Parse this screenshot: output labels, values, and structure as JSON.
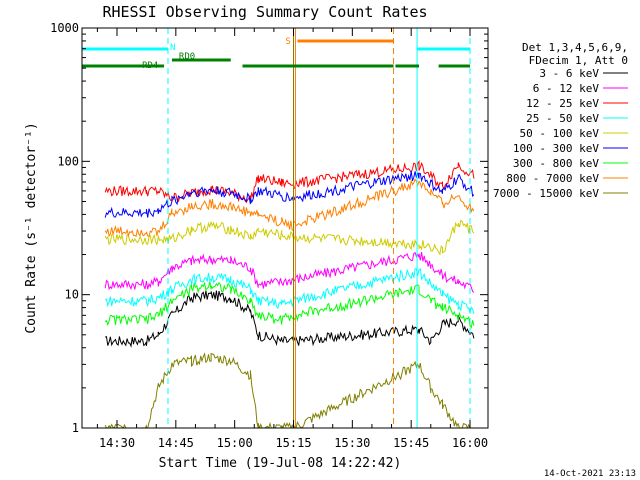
{
  "chart_data": {
    "type": "line",
    "title": "RHESSI Observing Summary Count Rates",
    "xlabel": "Start Time (19-Jul-08 14:22:42)",
    "ylabel": "Count Rate (s⁻¹ detector⁻¹)",
    "yscale": "log",
    "ylim": [
      1,
      1000
    ],
    "xlim_minutes": [
      14.2,
      100.5
    ],
    "x_ticks": [
      {
        "label": "14:30",
        "minute": 30
      },
      {
        "label": "14:45",
        "minute": 45
      },
      {
        "label": "15:00",
        "minute": 60
      },
      {
        "label": "15:15",
        "minute": 75
      },
      {
        "label": "15:30",
        "minute": 90
      },
      {
        "label": "15:45",
        "minute": 105
      },
      {
        "label": "16:00",
        "minute": 120
      }
    ],
    "y_ticks": [
      {
        "label": "1",
        "value": 1
      },
      {
        "label": "10",
        "value": 10
      },
      {
        "label": "100",
        "value": 100
      },
      {
        "label": "1000",
        "value": 1000
      }
    ],
    "legend": {
      "placement": "right",
      "header": [
        "Det 1,3,4,5,6,9,",
        "FDecim 1, Att 0"
      ]
    },
    "series": [
      {
        "name": "3 - 6 keV",
        "color": "#000000",
        "x": [
          27,
          37.5,
          40.5,
          44,
          49,
          54,
          59,
          64,
          66,
          72,
          75,
          107,
          110,
          113,
          117,
          121
        ],
        "y": [
          4.5,
          4.5,
          5,
          7,
          9.5,
          10,
          9.5,
          7.5,
          5,
          4.5,
          4.5,
          5.5,
          4.5,
          6,
          6.5,
          5
        ]
      },
      {
        "name": "6 - 12 keV",
        "color": "#ff00ff",
        "x": [
          27,
          37.5,
          40.5,
          44,
          49,
          54,
          59,
          64,
          66,
          72,
          75,
          107,
          110,
          113,
          117,
          121
        ],
        "y": [
          12,
          12,
          12.5,
          16,
          18,
          18.5,
          18,
          16,
          12,
          12.5,
          13,
          20,
          17,
          14,
          12.5,
          11
        ]
      },
      {
        "name": "12 - 25 keV",
        "color": "#ff0000",
        "x": [
          27,
          37.5,
          40.5,
          44,
          49,
          54,
          59,
          64,
          66,
          72,
          75,
          107,
          110,
          113,
          117,
          121
        ],
        "y": [
          60,
          60,
          60,
          53,
          58,
          62,
          58,
          52,
          75,
          69,
          68,
          92,
          78,
          65,
          95,
          78
        ]
      },
      {
        "name": "25 - 50 keV",
        "color": "#00ffff",
        "x": [
          27,
          37.5,
          40.5,
          44,
          49,
          54,
          59,
          64,
          66,
          72,
          75,
          107,
          110,
          113,
          117,
          121
        ],
        "y": [
          9,
          9,
          9.5,
          11,
          13,
          13.5,
          13,
          11,
          9,
          8.5,
          9,
          15,
          12,
          10,
          8.5,
          7.5
        ]
      },
      {
        "name": "50 - 100 keV",
        "color": "#cccc00",
        "x": [
          27,
          37.5,
          40.5,
          44,
          49,
          54,
          59,
          64,
          66,
          72,
          75,
          107,
          110,
          113,
          117,
          121
        ],
        "y": [
          26,
          26,
          26,
          26,
          31,
          33,
          31,
          27,
          30,
          28,
          27,
          24,
          23,
          21,
          35,
          30
        ]
      },
      {
        "name": "100 - 300 keV",
        "color": "#0000ff",
        "x": [
          27,
          37.5,
          40.5,
          44,
          49,
          54,
          59,
          64,
          66,
          72,
          75,
          107,
          110,
          113,
          117,
          121
        ],
        "y": [
          41,
          41,
          43,
          50,
          59,
          61,
          58,
          52,
          60,
          55,
          53,
          80,
          68,
          58,
          75,
          58
        ]
      },
      {
        "name": "300 - 800 keV",
        "color": "#00ff00",
        "x": [
          27,
          37.5,
          40.5,
          44,
          49,
          54,
          59,
          64,
          66,
          72,
          75,
          107,
          110,
          113,
          117,
          121
        ],
        "y": [
          6.5,
          6.5,
          7,
          9,
          11,
          12,
          11,
          9,
          7,
          6.5,
          7,
          11,
          9,
          8,
          7,
          6
        ]
      },
      {
        "name": "800 - 7000 keV",
        "color": "#ff8000",
        "x": [
          27,
          37.5,
          40.5,
          44,
          49,
          54,
          59,
          64,
          66,
          72,
          75,
          107,
          110,
          113,
          117,
          121
        ],
        "y": [
          30,
          30,
          29,
          41,
          46,
          48,
          46,
          41,
          40,
          35,
          33,
          70,
          58,
          48,
          55,
          43
        ]
      },
      {
        "name": "7000 - 15000 keV",
        "color": "#808000",
        "x": [
          27,
          37.5,
          40.5,
          44,
          49,
          54,
          59,
          64,
          66,
          72,
          75,
          107,
          110,
          113,
          117,
          121
        ],
        "y": [
          1,
          1,
          2,
          3,
          3.2,
          3.4,
          3.2,
          2.5,
          1,
          1,
          1,
          3,
          2,
          1.5,
          1,
          1
        ]
      }
    ],
    "vlines": [
      {
        "minute": 16,
        "style": "solid",
        "color": "#00ffff"
      },
      {
        "minute": 43,
        "style": "dashed",
        "color": "#00ffff"
      },
      {
        "minute": 106.5,
        "style": "solid",
        "color": "#00ffff"
      },
      {
        "minute": 120,
        "style": "dashed",
        "color": "#00ffff"
      },
      {
        "minute": 75.5,
        "style": "solid",
        "color": "#ff8000"
      },
      {
        "minute": 100.5,
        "style": "dashed",
        "color": "#ff8000"
      },
      {
        "minute": 75,
        "style": "solid",
        "color": "#808000"
      }
    ],
    "state_bars": [
      {
        "label": "N",
        "color": "#00ffff",
        "segments": [
          [
            16,
            43
          ],
          [
            106.5,
            120
          ]
        ],
        "level": "upper"
      },
      {
        "label": "S",
        "color": "#ff8000",
        "segments": [
          [
            76,
            100.5
          ]
        ],
        "level": "top"
      },
      {
        "label": "RD0",
        "color": "#008000",
        "segments": [
          [
            44,
            59
          ]
        ],
        "level": "middle"
      },
      {
        "label": "RD4",
        "color": "#008000",
        "segments": [
          [
            16,
            42
          ],
          [
            62,
            100.5
          ],
          [
            101,
            107
          ],
          [
            112,
            120
          ]
        ],
        "level": "middle"
      }
    ],
    "timestamp": "14-Oct-2021 23:13",
    "grid": false
  }
}
